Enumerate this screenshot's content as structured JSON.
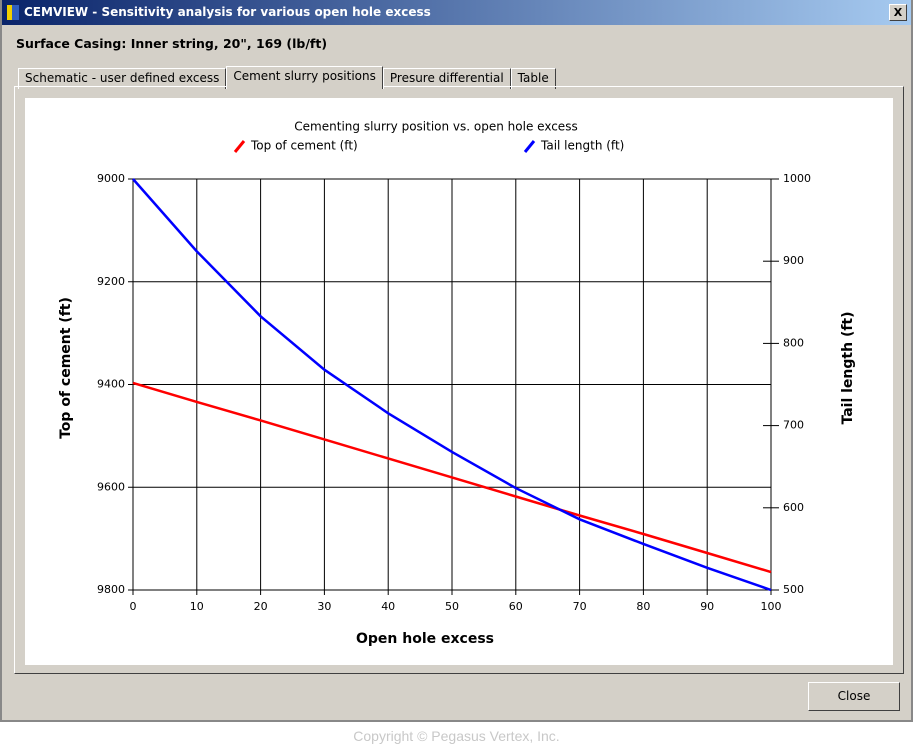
{
  "window": {
    "title": "CEMVIEW - Sensitivity analysis for various open hole excess",
    "close_glyph": "X"
  },
  "header": {
    "subtitle": "Surface Casing: Inner string, 20\", 169 (lb/ft)"
  },
  "tabs": [
    "Schematic - user defined excess",
    "Cement slurry positions",
    "Presure differential",
    "Table"
  ],
  "chart_data": {
    "type": "line",
    "title": "Cementing slurry position vs. open hole excess",
    "x_label": "Open hole excess",
    "y_label": "Top of cement (ft)",
    "y2_label": "Tail length (ft)",
    "x": [
      0,
      10,
      20,
      30,
      40,
      50,
      60,
      70,
      80,
      90,
      100
    ],
    "series": [
      {
        "name": "Top of cement (ft)",
        "color": "#ff0000",
        "values": [
          9397,
          9434,
          9470,
          9507,
          9544,
          9581,
          9618,
          9655,
          9691,
          9728,
          9765
        ]
      },
      {
        "name": "Tail length (ft)",
        "color": "#0000ff",
        "axis": "y2",
        "values": [
          1000,
          912,
          833,
          768,
          715,
          668,
          624,
          586,
          556,
          527,
          500
        ]
      }
    ],
    "xlim": [
      0,
      100
    ],
    "xticks": [
      0,
      10,
      20,
      30,
      40,
      50,
      60,
      70,
      80,
      90,
      100
    ],
    "ylim": [
      9000,
      9800
    ],
    "y_inverted": true,
    "yticks": [
      9000,
      9200,
      9400,
      9600,
      9800
    ],
    "y2lim": [
      500,
      1000
    ],
    "y2ticks": [
      500,
      600,
      700,
      800,
      900,
      1000
    ],
    "grid": true
  },
  "buttons": {
    "close": "Close"
  },
  "footer": {
    "copyright": "Copyright © Pegasus Vertex, Inc."
  }
}
